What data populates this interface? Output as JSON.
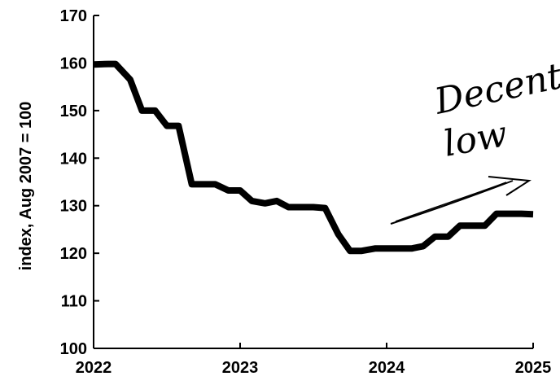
{
  "chart_data": {
    "type": "line",
    "title": "",
    "xlabel": "",
    "ylabel": "index, Aug 2007 = 100",
    "ylim": [
      100,
      170
    ],
    "xlim": [
      2022,
      2025
    ],
    "y_ticks": [
      "100",
      "110",
      "120",
      "130",
      "140",
      "150",
      "160",
      "170"
    ],
    "x_ticks": [
      "2022",
      "2023",
      "2024",
      "2025"
    ],
    "grid": false,
    "legend": "none",
    "line_color": "#000000",
    "series": [
      {
        "x": [
          2022.0,
          2022.1,
          2022.15,
          2022.25,
          2022.33,
          2022.42,
          2022.5,
          2022.58,
          2022.67,
          2022.75,
          2022.83,
          2022.92,
          2023.0,
          2023.08,
          2023.17,
          2023.25,
          2023.33,
          2023.42,
          2023.5,
          2023.58,
          2023.67,
          2023.75,
          2023.83,
          2023.92,
          2024.0,
          2024.08,
          2024.17,
          2024.25,
          2024.33,
          2024.42,
          2024.5,
          2024.58,
          2024.67,
          2024.75,
          2024.83,
          2024.92,
          2025.0
        ],
        "values": [
          159.7,
          159.8,
          159.8,
          156.5,
          150.0,
          150.0,
          146.8,
          146.8,
          134.5,
          134.5,
          134.5,
          133.2,
          133.2,
          131.0,
          130.5,
          131.0,
          129.7,
          129.7,
          129.7,
          129.5,
          124.0,
          120.5,
          120.5,
          121.0,
          121.0,
          121.0,
          121.0,
          121.5,
          123.5,
          123.5,
          125.8,
          125.8,
          125.8,
          128.3,
          128.3,
          128.3,
          128.2
        ]
      }
    ],
    "annotations": [
      "Decent",
      "low"
    ]
  }
}
